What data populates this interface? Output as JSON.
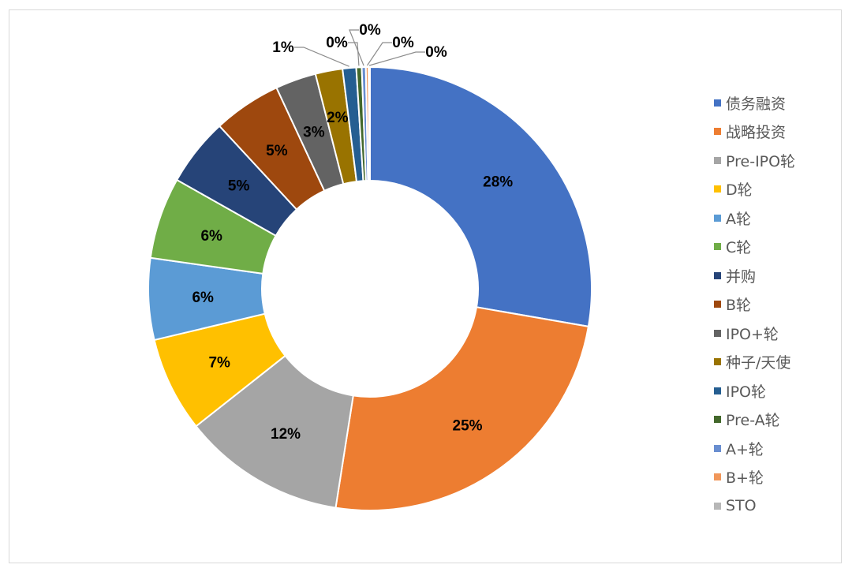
{
  "chart_data": {
    "type": "pie",
    "donut": true,
    "title": "",
    "legend_position": "right",
    "categories": [
      "债务融资",
      "战略投资",
      "Pre-IPO轮",
      "D轮",
      "A轮",
      "C轮",
      "并购",
      "B轮",
      "IPO+轮",
      "种子/天使",
      "IPO轮",
      "Pre-A轮",
      "A+轮",
      "B+轮",
      "STO"
    ],
    "values": [
      28,
      25,
      12,
      7,
      6,
      6,
      5,
      5,
      3,
      2,
      1,
      0.4,
      0.3,
      0.2,
      0.1
    ],
    "labels": [
      "28%",
      "25%",
      "12%",
      "7%",
      "6%",
      "6%",
      "5%",
      "5%",
      "3%",
      "2%",
      "1%",
      "0%",
      "0%",
      "0%",
      "0%"
    ],
    "colors": [
      "#4472C4",
      "#ED7D31",
      "#A5A5A5",
      "#FFC000",
      "#5B9BD5",
      "#70AD47",
      "#264478",
      "#9E480E",
      "#636363",
      "#997300",
      "#255E91",
      "#43682B",
      "#698ED0",
      "#F1975A",
      "#B7B7B7"
    ]
  }
}
